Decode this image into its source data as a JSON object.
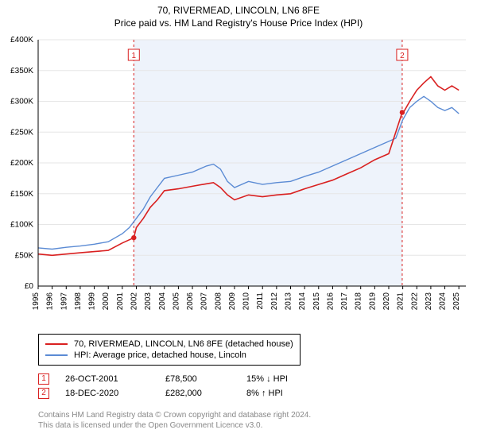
{
  "title_line1": "70, RIVERMEAD, LINCOLN, LN6 8FE",
  "title_line2": "Price paid vs. HM Land Registry's House Price Index (HPI)",
  "chart": {
    "type": "line",
    "background_color": "#ffffff",
    "shaded_band_color": "#eef3fb",
    "grid_color": "#e6e6e6",
    "axis_color": "#000000",
    "tick_font_size": 10,
    "ylabel_prefix": "£",
    "ylim": [
      0,
      400000
    ],
    "ytick_step": 50000,
    "y_ticks": [
      "£0",
      "£50K",
      "£100K",
      "£150K",
      "£200K",
      "£250K",
      "£300K",
      "£350K",
      "£400K"
    ],
    "x_years": [
      1995,
      1996,
      1997,
      1998,
      1999,
      2000,
      2001,
      2002,
      2003,
      2004,
      2005,
      2006,
      2007,
      2008,
      2009,
      2010,
      2011,
      2012,
      2013,
      2014,
      2015,
      2016,
      2017,
      2018,
      2019,
      2020,
      2021,
      2022,
      2023,
      2024,
      2025
    ],
    "x_lim": [
      1995,
      2025.5
    ],
    "series": [
      {
        "id": "hpi",
        "name": "HPI: Average price, detached house, Lincoln",
        "color": "#5b8bd4",
        "line_width": 1.4,
        "data": [
          [
            1995,
            62000
          ],
          [
            1996,
            60000
          ],
          [
            1997,
            63000
          ],
          [
            1998,
            65000
          ],
          [
            1999,
            68000
          ],
          [
            2000,
            72000
          ],
          [
            2001,
            85000
          ],
          [
            2001.5,
            95000
          ],
          [
            2002,
            110000
          ],
          [
            2002.5,
            125000
          ],
          [
            2003,
            145000
          ],
          [
            2003.5,
            160000
          ],
          [
            2004,
            175000
          ],
          [
            2005,
            180000
          ],
          [
            2006,
            185000
          ],
          [
            2007,
            195000
          ],
          [
            2007.5,
            198000
          ],
          [
            2008,
            190000
          ],
          [
            2008.5,
            170000
          ],
          [
            2009,
            160000
          ],
          [
            2010,
            170000
          ],
          [
            2011,
            165000
          ],
          [
            2012,
            168000
          ],
          [
            2013,
            170000
          ],
          [
            2014,
            178000
          ],
          [
            2015,
            185000
          ],
          [
            2016,
            195000
          ],
          [
            2017,
            205000
          ],
          [
            2018,
            215000
          ],
          [
            2019,
            225000
          ],
          [
            2020,
            235000
          ],
          [
            2020.5,
            240000
          ],
          [
            2021,
            270000
          ],
          [
            2021.5,
            290000
          ],
          [
            2022,
            300000
          ],
          [
            2022.5,
            308000
          ],
          [
            2023,
            300000
          ],
          [
            2023.5,
            290000
          ],
          [
            2024,
            285000
          ],
          [
            2024.5,
            290000
          ],
          [
            2025,
            280000
          ]
        ]
      },
      {
        "id": "price_paid",
        "name": "70, RIVERMEAD, LINCOLN, LN6 8FE (detached house)",
        "color": "#d92020",
        "line_width": 1.6,
        "data": [
          [
            1995,
            52000
          ],
          [
            1996,
            50000
          ],
          [
            1997,
            52000
          ],
          [
            1998,
            54000
          ],
          [
            1999,
            56000
          ],
          [
            2000,
            58000
          ],
          [
            2001,
            70000
          ],
          [
            2001.82,
            78500
          ],
          [
            2002,
            95000
          ],
          [
            2002.5,
            110000
          ],
          [
            2003,
            128000
          ],
          [
            2003.5,
            140000
          ],
          [
            2004,
            155000
          ],
          [
            2005,
            158000
          ],
          [
            2006,
            162000
          ],
          [
            2007,
            166000
          ],
          [
            2007.5,
            168000
          ],
          [
            2008,
            160000
          ],
          [
            2008.5,
            148000
          ],
          [
            2009,
            140000
          ],
          [
            2010,
            148000
          ],
          [
            2011,
            145000
          ],
          [
            2012,
            148000
          ],
          [
            2013,
            150000
          ],
          [
            2014,
            158000
          ],
          [
            2015,
            165000
          ],
          [
            2016,
            172000
          ],
          [
            2017,
            182000
          ],
          [
            2018,
            192000
          ],
          [
            2019,
            205000
          ],
          [
            2020,
            215000
          ],
          [
            2020.96,
            282000
          ],
          [
            2021,
            280000
          ],
          [
            2021.5,
            300000
          ],
          [
            2022,
            318000
          ],
          [
            2022.5,
            330000
          ],
          [
            2023,
            340000
          ],
          [
            2023.5,
            325000
          ],
          [
            2024,
            318000
          ],
          [
            2024.5,
            325000
          ],
          [
            2025,
            318000
          ]
        ]
      }
    ],
    "markers": [
      {
        "n": "1",
        "x": 2001.82,
        "y": 78500,
        "box_color": "#d92020",
        "dash_color": "#d92020"
      },
      {
        "n": "2",
        "x": 2020.96,
        "y": 282000,
        "box_color": "#d92020",
        "dash_color": "#d92020"
      }
    ],
    "marker_box_top_offset": 12
  },
  "legend": {
    "items": [
      {
        "color": "#d92020",
        "label": "70, RIVERMEAD, LINCOLN, LN6 8FE (detached house)"
      },
      {
        "color": "#5b8bd4",
        "label": "HPI: Average price, detached house, Lincoln"
      }
    ]
  },
  "transactions": [
    {
      "n": "1",
      "box_color": "#d92020",
      "date": "26-OCT-2001",
      "price": "£78,500",
      "pct": "15% ↓ HPI"
    },
    {
      "n": "2",
      "box_color": "#d92020",
      "date": "18-DEC-2020",
      "price": "£282,000",
      "pct": "8% ↑ HPI"
    }
  ],
  "footer_line1": "Contains HM Land Registry data © Crown copyright and database right 2024.",
  "footer_line2": "This data is licensed under the Open Government Licence v3.0."
}
